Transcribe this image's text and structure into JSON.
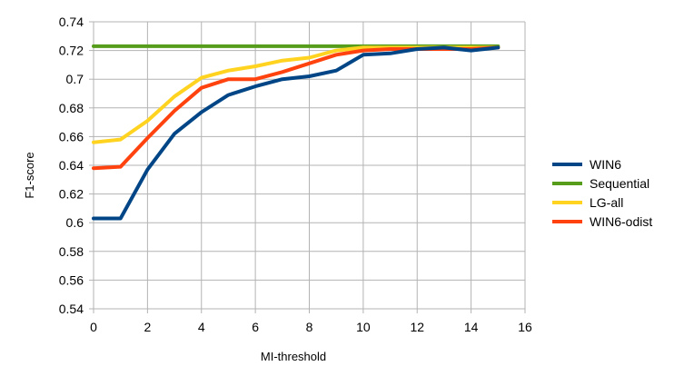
{
  "chart_data": {
    "type": "line",
    "xlabel": "MI-threshold",
    "ylabel": "F1-score",
    "xlim": [
      0,
      16
    ],
    "ylim": [
      0.54,
      0.74
    ],
    "x_ticks": [
      0,
      2,
      4,
      6,
      8,
      10,
      12,
      14,
      16
    ],
    "y_ticks": [
      0.54,
      0.56,
      0.58,
      0.6,
      0.62,
      0.64,
      0.66,
      0.68,
      0.7,
      0.72,
      0.74
    ],
    "grid": true,
    "legend_position": "right",
    "x": [
      0,
      1,
      2,
      3,
      4,
      5,
      6,
      7,
      8,
      9,
      10,
      11,
      12,
      13,
      14,
      15
    ],
    "series": [
      {
        "name": "WIN6",
        "color": "#004586",
        "values": [
          0.603,
          0.603,
          0.637,
          0.662,
          0.677,
          0.689,
          0.695,
          0.7,
          0.702,
          0.706,
          0.717,
          0.718,
          0.721,
          0.722,
          0.72,
          0.722
        ]
      },
      {
        "name": "Sequential",
        "color": "#579d1c",
        "values": [
          0.723,
          0.723,
          0.723,
          0.723,
          0.723,
          0.723,
          0.723,
          0.723,
          0.723,
          0.723,
          0.723,
          0.723,
          0.723,
          0.723,
          0.723,
          0.723
        ]
      },
      {
        "name": "LG-all",
        "color": "#ffd320",
        "values": [
          0.656,
          0.658,
          0.671,
          0.688,
          0.701,
          0.706,
          0.709,
          0.713,
          0.715,
          0.72,
          0.722,
          0.722,
          0.722,
          0.722,
          0.722,
          0.722
        ]
      },
      {
        "name": "WIN6-odist",
        "color": "#ff420e",
        "values": [
          0.638,
          0.639,
          0.659,
          0.678,
          0.694,
          0.7,
          0.7,
          0.705,
          0.711,
          0.717,
          0.72,
          0.721,
          0.721,
          0.721,
          0.721,
          0.722
        ]
      }
    ]
  }
}
